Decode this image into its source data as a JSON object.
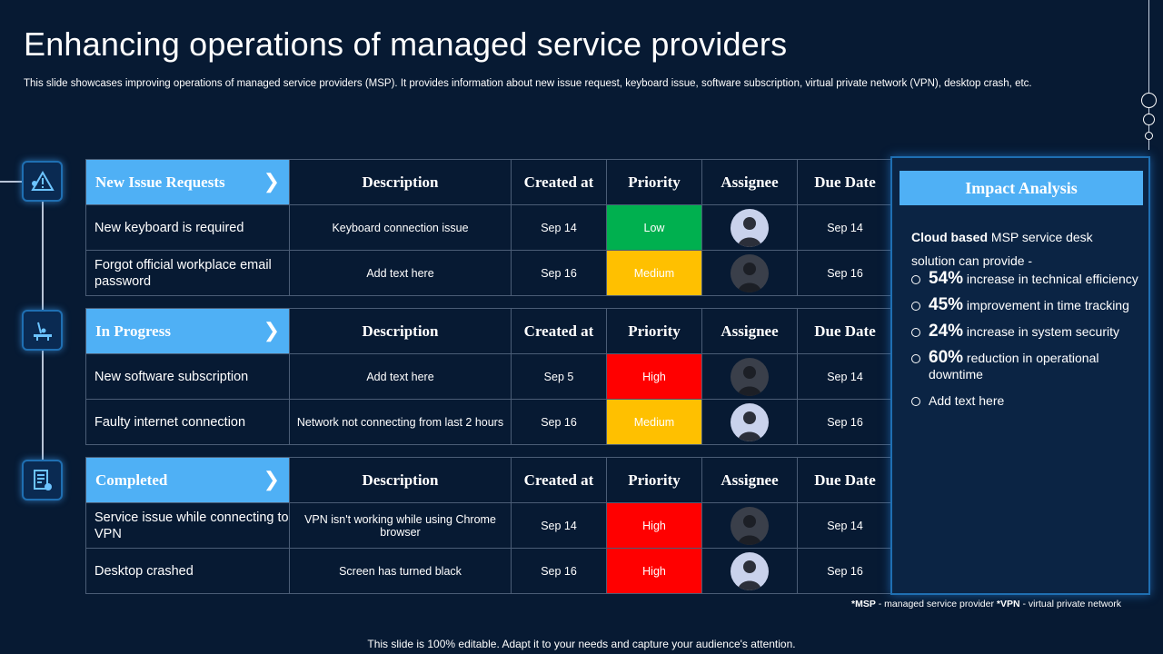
{
  "title": "Enhancing operations of managed service providers",
  "subtitle": "This slide showcases improving operations of managed service providers (MSP). It provides information about new issue request, keyboard issue, software subscription, virtual private network (VPN),  desktop crash, etc.",
  "columns": [
    "Description",
    "Created at",
    "Priority",
    "Assignee",
    "Due Date"
  ],
  "sections": [
    {
      "label": "New Issue Requests",
      "icon": "warning-network-icon",
      "rows": [
        {
          "issue": "New keyboard is required",
          "description": "Keyboard connection issue",
          "created": "Sep 14",
          "priority": "Low",
          "due": "Sep 14"
        },
        {
          "issue": "Forgot official workplace email password",
          "description": "Add text here",
          "created": "Sep 16",
          "priority": "Medium",
          "due": "Sep 16"
        }
      ]
    },
    {
      "label": "In Progress",
      "icon": "work-desk-icon",
      "rows": [
        {
          "issue": "New software subscription",
          "description": "Add text here",
          "created": "Sep 5",
          "priority": "High",
          "due": "Sep 14"
        },
        {
          "issue": "Faulty internet connection",
          "description": "Network not connecting from last 2 hours",
          "created": "Sep 16",
          "priority": "Medium",
          "due": "Sep 16"
        }
      ]
    },
    {
      "label": "Completed",
      "icon": "document-check-icon",
      "rows": [
        {
          "issue": "Service issue while connecting to VPN",
          "description": "VPN isn't working while using Chrome browser",
          "created": "Sep 14",
          "priority": "High",
          "due": "Sep 14"
        },
        {
          "issue": "Desktop crashed",
          "description": "Screen has turned black",
          "created": "Sep 16",
          "priority": "High",
          "due": "Sep 16"
        }
      ]
    }
  ],
  "impact": {
    "heading": "Impact Analysis",
    "intro_bold": "Cloud based",
    "intro_rest": " MSP service desk solution can provide -",
    "bullets": [
      {
        "value": "54%",
        "text": " increase in technical efficiency"
      },
      {
        "value": "45%",
        "text": " improvement in time tracking"
      },
      {
        "value": "24%",
        "text": " increase in system security"
      },
      {
        "value": "60%",
        "text": " reduction in operational downtime"
      },
      {
        "value": "",
        "text": "Add text here"
      }
    ]
  },
  "footnote": {
    "msp_abbr": "*MSP",
    "msp_def": " - managed service provider ",
    "vpn_abbr": "*VPN",
    "vpn_def": " - virtual private network"
  },
  "footer": "This slide is 100% editable. Adapt it to your needs and capture your audience's attention.",
  "colors": {
    "accent": "#4fb0f5",
    "background": "#071a33",
    "low": "#00b04f",
    "medium": "#ffc000",
    "high": "#ff0000"
  }
}
